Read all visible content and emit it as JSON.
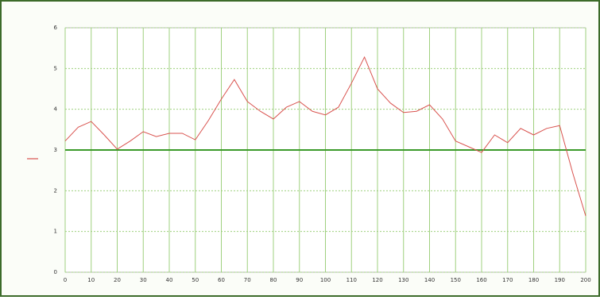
{
  "chart_data": {
    "type": "line",
    "x": [
      0,
      5,
      10,
      15,
      20,
      25,
      30,
      35,
      40,
      45,
      50,
      55,
      60,
      65,
      70,
      75,
      80,
      85,
      90,
      95,
      100,
      105,
      110,
      115,
      120,
      125,
      130,
      135,
      140,
      145,
      150,
      155,
      160,
      165,
      170,
      175,
      180,
      185,
      190,
      195,
      200
    ],
    "series": [
      {
        "color": "#d9534f",
        "values": [
          3.22,
          3.56,
          3.7,
          3.37,
          3.02,
          3.22,
          3.45,
          3.33,
          3.41,
          3.41,
          3.25,
          3.72,
          4.25,
          4.73,
          4.19,
          3.95,
          3.76,
          4.05,
          4.19,
          3.95,
          3.86,
          4.05,
          4.64,
          5.28,
          4.5,
          4.15,
          3.92,
          3.95,
          4.11,
          3.76,
          3.22,
          3.08,
          2.94,
          3.37,
          3.18,
          3.53,
          3.37,
          3.53,
          3.6,
          2.44,
          1.38
        ]
      }
    ],
    "xlim": [
      0,
      200
    ],
    "xticks": [
      0,
      10,
      20,
      30,
      40,
      50,
      60,
      70,
      80,
      90,
      100,
      110,
      120,
      130,
      140,
      150,
      160,
      170,
      180,
      190,
      200
    ],
    "ylim": [
      0,
      6
    ],
    "yticks": [
      0,
      1,
      2,
      3,
      4,
      5,
      6
    ],
    "highlight_y": 3,
    "grid": true
  }
}
